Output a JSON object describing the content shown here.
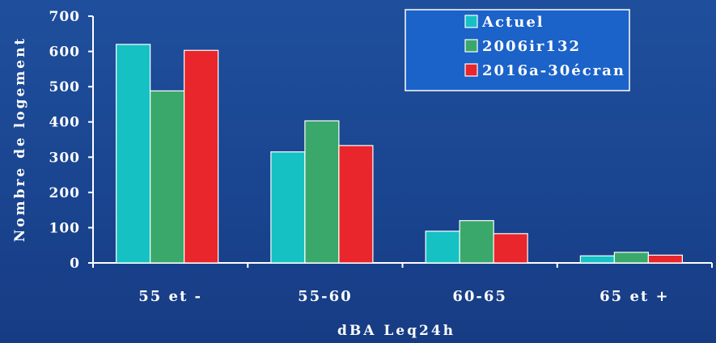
{
  "chart_data": {
    "type": "bar",
    "categories": [
      "55 et -",
      "55-60",
      "60-65",
      "65 et +"
    ],
    "series": [
      {
        "name": "Actuel",
        "values": [
          620,
          315,
          90,
          20
        ],
        "color": "#16c1c4"
      },
      {
        "name": "2006ir132",
        "values": [
          488,
          403,
          120,
          30
        ],
        "color": "#3aa86a"
      },
      {
        "name": "2016a-30écran",
        "values": [
          603,
          333,
          83,
          22
        ],
        "color": "#e8262b"
      }
    ],
    "xlabel": "dBA Leq24h",
    "ylabel": "Nombre de logement",
    "ylim": [
      0,
      700
    ],
    "yticks": [
      0,
      100,
      200,
      300,
      400,
      500,
      600,
      700
    ],
    "legend_position": "top-right",
    "grid": false
  },
  "colors": {
    "background": "#1c4a96",
    "legend_background": "#1b62c9",
    "axis": "#ffffff"
  }
}
